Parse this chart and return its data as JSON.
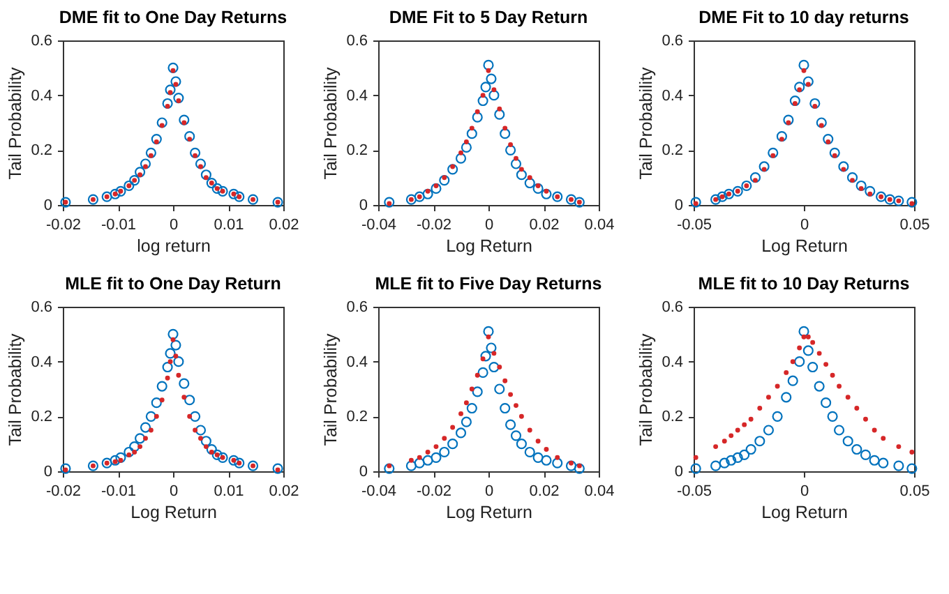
{
  "chart_data": [
    {
      "type": "scatter",
      "title": "DME fit to One Day Returns",
      "xlabel": "log return",
      "ylabel": "Tail Probability",
      "xlim": [
        -0.02,
        0.02
      ],
      "xticks": [
        -0.02,
        -0.01,
        0,
        0.01,
        0.02
      ],
      "ylim": [
        0,
        0.6
      ],
      "yticks": [
        0,
        0.2,
        0.4,
        0.6
      ],
      "marker": "circle",
      "grid": false,
      "series": [
        {
          "color": "#0072bd",
          "x": [
            -0.0195,
            -0.0145,
            -0.012,
            -0.0105,
            -0.0095,
            -0.008,
            -0.007,
            -0.006,
            -0.005,
            -0.004,
            -0.003,
            -0.002,
            -0.001,
            -0.0005,
            0,
            0.0005,
            0.001,
            0.002,
            0.003,
            0.004,
            0.005,
            0.006,
            0.007,
            0.008,
            0.009,
            0.011,
            0.012,
            0.0145,
            0.019
          ],
          "values": [
            0.01,
            0.02,
            0.03,
            0.04,
            0.05,
            0.07,
            0.09,
            0.12,
            0.15,
            0.19,
            0.24,
            0.3,
            0.37,
            0.42,
            0.5,
            0.45,
            0.39,
            0.31,
            0.25,
            0.19,
            0.15,
            0.11,
            0.08,
            0.06,
            0.05,
            0.04,
            0.03,
            0.02,
            0.01
          ]
        },
        {
          "color": "#d62728",
          "x": [
            -0.0195,
            -0.0145,
            -0.012,
            -0.0105,
            -0.0095,
            -0.008,
            -0.007,
            -0.006,
            -0.005,
            -0.004,
            -0.003,
            -0.002,
            -0.001,
            -0.0005,
            0,
            0.0005,
            0.001,
            0.002,
            0.003,
            0.004,
            0.005,
            0.006,
            0.007,
            0.008,
            0.009,
            0.011,
            0.012,
            0.0145,
            0.019
          ],
          "values": [
            0.01,
            0.02,
            0.03,
            0.04,
            0.05,
            0.07,
            0.09,
            0.11,
            0.14,
            0.18,
            0.23,
            0.29,
            0.36,
            0.41,
            0.49,
            0.44,
            0.38,
            0.3,
            0.24,
            0.18,
            0.14,
            0.1,
            0.08,
            0.06,
            0.05,
            0.04,
            0.03,
            0.02,
            0.01
          ]
        }
      ]
    },
    {
      "type": "scatter",
      "title": "DME Fit to 5 Day Return",
      "xlabel": "Log Return",
      "ylabel": "Tail Probability",
      "xlim": [
        -0.04,
        0.04
      ],
      "xticks": [
        -0.04,
        -0.02,
        0,
        0.02,
        0.04
      ],
      "ylim": [
        0,
        0.6
      ],
      "yticks": [
        0,
        0.2,
        0.4,
        0.6
      ],
      "marker": "circle",
      "grid": false,
      "series": [
        {
          "color": "#0072bd",
          "x": [
            -0.036,
            -0.028,
            -0.025,
            -0.022,
            -0.019,
            -0.016,
            -0.013,
            -0.01,
            -0.008,
            -0.006,
            -0.004,
            -0.002,
            -0.001,
            0,
            0.001,
            0.002,
            0.004,
            0.006,
            0.008,
            0.01,
            0.012,
            0.015,
            0.018,
            0.021,
            0.025,
            0.03,
            0.033
          ],
          "values": [
            0.01,
            0.02,
            0.03,
            0.04,
            0.06,
            0.09,
            0.13,
            0.17,
            0.21,
            0.26,
            0.32,
            0.38,
            0.43,
            0.51,
            0.46,
            0.4,
            0.33,
            0.26,
            0.2,
            0.15,
            0.11,
            0.08,
            0.06,
            0.04,
            0.03,
            0.02,
            0.01
          ]
        },
        {
          "color": "#d62728",
          "x": [
            -0.036,
            -0.028,
            -0.025,
            -0.022,
            -0.019,
            -0.016,
            -0.013,
            -0.01,
            -0.008,
            -0.006,
            -0.004,
            -0.002,
            0,
            0.002,
            0.004,
            0.006,
            0.008,
            0.01,
            0.012,
            0.015,
            0.018,
            0.021,
            0.025,
            0.03,
            0.033
          ],
          "values": [
            0.005,
            0.02,
            0.03,
            0.05,
            0.07,
            0.1,
            0.14,
            0.19,
            0.23,
            0.28,
            0.34,
            0.4,
            0.49,
            0.42,
            0.35,
            0.28,
            0.22,
            0.17,
            0.13,
            0.1,
            0.07,
            0.05,
            0.03,
            0.02,
            0.01
          ]
        }
      ]
    },
    {
      "type": "scatter",
      "title": "DME Fit to 10 day returns",
      "xlabel": "Log Return",
      "ylabel": "Tail Probability",
      "xlim": [
        -0.05,
        0.05
      ],
      "xticks": [
        -0.05,
        0,
        0.05
      ],
      "ylim": [
        0,
        0.6
      ],
      "yticks": [
        0,
        0.2,
        0.4,
        0.6
      ],
      "marker": "circle",
      "grid": false,
      "series": [
        {
          "color": "#0072bd",
          "x": [
            -0.049,
            -0.04,
            -0.037,
            -0.034,
            -0.03,
            -0.026,
            -0.022,
            -0.018,
            -0.014,
            -0.01,
            -0.007,
            -0.004,
            -0.002,
            0,
            0.002,
            0.005,
            0.008,
            0.011,
            0.014,
            0.018,
            0.022,
            0.026,
            0.03,
            0.035,
            0.039,
            0.043,
            0.049
          ],
          "values": [
            0.01,
            0.02,
            0.03,
            0.04,
            0.05,
            0.07,
            0.1,
            0.14,
            0.19,
            0.25,
            0.31,
            0.38,
            0.43,
            0.51,
            0.45,
            0.37,
            0.3,
            0.24,
            0.19,
            0.14,
            0.1,
            0.07,
            0.05,
            0.03,
            0.02,
            0.015,
            0.01
          ]
        },
        {
          "color": "#d62728",
          "x": [
            -0.049,
            -0.04,
            -0.037,
            -0.034,
            -0.03,
            -0.026,
            -0.022,
            -0.018,
            -0.014,
            -0.01,
            -0.007,
            -0.004,
            -0.002,
            0,
            0.002,
            0.005,
            0.008,
            0.011,
            0.014,
            0.018,
            0.022,
            0.026,
            0.03,
            0.035,
            0.039,
            0.043,
            0.049
          ],
          "values": [
            0.005,
            0.02,
            0.03,
            0.04,
            0.05,
            0.07,
            0.09,
            0.13,
            0.18,
            0.24,
            0.3,
            0.37,
            0.42,
            0.49,
            0.44,
            0.36,
            0.29,
            0.23,
            0.18,
            0.13,
            0.09,
            0.06,
            0.04,
            0.03,
            0.02,
            0.015,
            0.005
          ]
        }
      ]
    },
    {
      "type": "scatter",
      "title": "MLE fit to One Day Return",
      "xlabel": "Log Return",
      "ylabel": "Tail Probability",
      "xlim": [
        -0.02,
        0.02
      ],
      "xticks": [
        -0.02,
        -0.01,
        0,
        0.01,
        0.02
      ],
      "ylim": [
        0,
        0.6
      ],
      "yticks": [
        0,
        0.2,
        0.4,
        0.6
      ],
      "marker": "circle",
      "grid": false,
      "series": [
        {
          "color": "#0072bd",
          "x": [
            -0.0195,
            -0.0145,
            -0.012,
            -0.0105,
            -0.0095,
            -0.008,
            -0.007,
            -0.006,
            -0.005,
            -0.004,
            -0.003,
            -0.002,
            -0.001,
            -0.0005,
            0,
            0.0005,
            0.001,
            0.002,
            0.003,
            0.004,
            0.005,
            0.006,
            0.007,
            0.008,
            0.009,
            0.011,
            0.012,
            0.0145,
            0.019
          ],
          "values": [
            0.01,
            0.02,
            0.03,
            0.04,
            0.05,
            0.07,
            0.09,
            0.12,
            0.16,
            0.2,
            0.25,
            0.31,
            0.38,
            0.43,
            0.5,
            0.46,
            0.4,
            0.32,
            0.26,
            0.2,
            0.15,
            0.11,
            0.08,
            0.06,
            0.05,
            0.04,
            0.03,
            0.02,
            0.01
          ]
        },
        {
          "color": "#d62728",
          "x": [
            -0.0195,
            -0.0145,
            -0.012,
            -0.0105,
            -0.0095,
            -0.008,
            -0.007,
            -0.006,
            -0.005,
            -0.004,
            -0.003,
            -0.002,
            -0.001,
            -0.0005,
            0,
            0.0005,
            0.001,
            0.002,
            0.003,
            0.004,
            0.005,
            0.006,
            0.007,
            0.008,
            0.009,
            0.011,
            0.012,
            0.0145,
            0.019
          ],
          "values": [
            0.005,
            0.02,
            0.03,
            0.035,
            0.04,
            0.06,
            0.07,
            0.09,
            0.12,
            0.15,
            0.2,
            0.26,
            0.34,
            0.4,
            0.48,
            0.42,
            0.35,
            0.27,
            0.2,
            0.15,
            0.12,
            0.09,
            0.07,
            0.06,
            0.05,
            0.04,
            0.03,
            0.02,
            0.005
          ]
        }
      ]
    },
    {
      "type": "scatter",
      "title": "MLE fit to Five Day Returns",
      "xlabel": "Log Return",
      "ylabel": "Tail Probability",
      "xlim": [
        -0.04,
        0.04
      ],
      "xticks": [
        -0.04,
        -0.02,
        0,
        0.02,
        0.04
      ],
      "ylim": [
        0,
        0.6
      ],
      "yticks": [
        0,
        0.2,
        0.4,
        0.6
      ],
      "marker": "circle",
      "grid": false,
      "series": [
        {
          "color": "#0072bd",
          "x": [
            -0.036,
            -0.028,
            -0.025,
            -0.022,
            -0.019,
            -0.016,
            -0.013,
            -0.01,
            -0.008,
            -0.006,
            -0.004,
            -0.002,
            -0.001,
            0,
            0.001,
            0.002,
            0.004,
            0.006,
            0.008,
            0.01,
            0.012,
            0.015,
            0.018,
            0.021,
            0.025,
            0.03,
            0.033
          ],
          "values": [
            0.01,
            0.02,
            0.03,
            0.04,
            0.05,
            0.07,
            0.1,
            0.14,
            0.18,
            0.23,
            0.29,
            0.36,
            0.42,
            0.51,
            0.45,
            0.38,
            0.3,
            0.23,
            0.17,
            0.13,
            0.1,
            0.07,
            0.05,
            0.04,
            0.03,
            0.02,
            0.01
          ]
        },
        {
          "color": "#d62728",
          "x": [
            -0.036,
            -0.028,
            -0.025,
            -0.022,
            -0.019,
            -0.016,
            -0.013,
            -0.01,
            -0.008,
            -0.006,
            -0.004,
            -0.002,
            0,
            0.002,
            0.004,
            0.006,
            0.008,
            0.01,
            0.012,
            0.015,
            0.018,
            0.021,
            0.025,
            0.03,
            0.033
          ],
          "values": [
            0.02,
            0.04,
            0.05,
            0.07,
            0.09,
            0.12,
            0.16,
            0.21,
            0.25,
            0.3,
            0.35,
            0.41,
            0.49,
            0.43,
            0.38,
            0.33,
            0.28,
            0.24,
            0.2,
            0.15,
            0.11,
            0.08,
            0.05,
            0.03,
            0.02
          ]
        }
      ]
    },
    {
      "type": "scatter",
      "title": "MLE fit to 10 Day Returns",
      "xlabel": "Log Return",
      "ylabel": "Tail Probability",
      "xlim": [
        -0.05,
        0.05
      ],
      "xticks": [
        -0.05,
        0,
        0.05
      ],
      "ylim": [
        0,
        0.6
      ],
      "yticks": [
        0,
        0.2,
        0.4,
        0.6
      ],
      "marker": "circle",
      "grid": false,
      "series": [
        {
          "color": "#0072bd",
          "x": [
            -0.049,
            -0.04,
            -0.036,
            -0.033,
            -0.03,
            -0.027,
            -0.024,
            -0.02,
            -0.016,
            -0.012,
            -0.008,
            -0.005,
            -0.002,
            0,
            0.002,
            0.004,
            0.007,
            0.01,
            0.013,
            0.016,
            0.02,
            0.024,
            0.028,
            0.032,
            0.036,
            0.043,
            0.049
          ],
          "values": [
            0.01,
            0.02,
            0.03,
            0.04,
            0.05,
            0.06,
            0.08,
            0.11,
            0.15,
            0.2,
            0.27,
            0.33,
            0.4,
            0.51,
            0.44,
            0.38,
            0.31,
            0.25,
            0.2,
            0.15,
            0.11,
            0.08,
            0.06,
            0.04,
            0.03,
            0.02,
            0.01
          ]
        },
        {
          "color": "#d62728",
          "x": [
            -0.049,
            -0.04,
            -0.036,
            -0.033,
            -0.03,
            -0.027,
            -0.024,
            -0.02,
            -0.016,
            -0.012,
            -0.008,
            -0.005,
            -0.002,
            0,
            0.002,
            0.004,
            0.007,
            0.01,
            0.013,
            0.016,
            0.02,
            0.024,
            0.028,
            0.032,
            0.036,
            0.043,
            0.049
          ],
          "values": [
            0.05,
            0.09,
            0.11,
            0.13,
            0.15,
            0.17,
            0.19,
            0.23,
            0.27,
            0.31,
            0.36,
            0.4,
            0.45,
            0.49,
            0.49,
            0.47,
            0.43,
            0.39,
            0.35,
            0.31,
            0.27,
            0.23,
            0.19,
            0.15,
            0.12,
            0.09,
            0.07
          ]
        }
      ]
    }
  ]
}
